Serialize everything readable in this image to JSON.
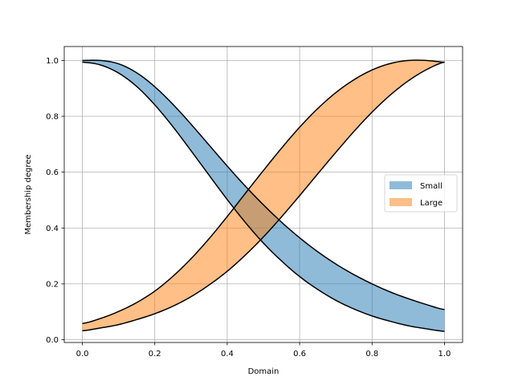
{
  "chart_data": {
    "type": "area",
    "xlabel": "Domain",
    "ylabel": "Membership degree",
    "xlim": [
      -0.05,
      1.05
    ],
    "ylim": [
      -0.01,
      1.05
    ],
    "xticks": [
      0.0,
      0.2,
      0.4,
      0.6,
      0.8,
      1.0
    ],
    "yticks": [
      0.0,
      0.2,
      0.4,
      0.6,
      0.8,
      1.0
    ],
    "xtick_labels": [
      "0.0",
      "0.2",
      "0.4",
      "0.6",
      "0.8",
      "1.0"
    ],
    "ytick_labels": [
      "0.0",
      "0.2",
      "0.4",
      "0.6",
      "0.8",
      "1.0"
    ],
    "grid": true,
    "legend_position": "center-right",
    "x": [
      0.0,
      0.05,
      0.1,
      0.15,
      0.2,
      0.25,
      0.3,
      0.35,
      0.4,
      0.45,
      0.5,
      0.55,
      0.6,
      0.65,
      0.7,
      0.75,
      0.8,
      0.85,
      0.9,
      0.95,
      1.0
    ],
    "series": [
      {
        "name": "Small",
        "color": "#1f77b4",
        "upper": [
          1.0,
          1.0,
          0.988,
          0.956,
          0.906,
          0.843,
          0.772,
          0.697,
          0.622,
          0.55,
          0.483,
          0.421,
          0.365,
          0.315,
          0.271,
          0.233,
          0.2,
          0.171,
          0.147,
          0.126,
          0.108
        ],
        "lower": [
          0.994,
          0.984,
          0.955,
          0.907,
          0.841,
          0.763,
          0.677,
          0.589,
          0.502,
          0.42,
          0.346,
          0.282,
          0.226,
          0.18,
          0.141,
          0.11,
          0.085,
          0.066,
          0.05,
          0.039,
          0.03
        ]
      },
      {
        "name": "Large",
        "color": "#ff7f0e",
        "upper": [
          0.058,
          0.076,
          0.101,
          0.133,
          0.174,
          0.227,
          0.29,
          0.362,
          0.441,
          0.524,
          0.606,
          0.686,
          0.761,
          0.828,
          0.885,
          0.931,
          0.966,
          0.989,
          1.0,
          1.0,
          0.994
        ],
        "lower": [
          0.032,
          0.042,
          0.054,
          0.072,
          0.093,
          0.12,
          0.154,
          0.196,
          0.245,
          0.303,
          0.368,
          0.44,
          0.516,
          0.594,
          0.671,
          0.746,
          0.815,
          0.876,
          0.927,
          0.967,
          0.994
        ]
      }
    ]
  }
}
